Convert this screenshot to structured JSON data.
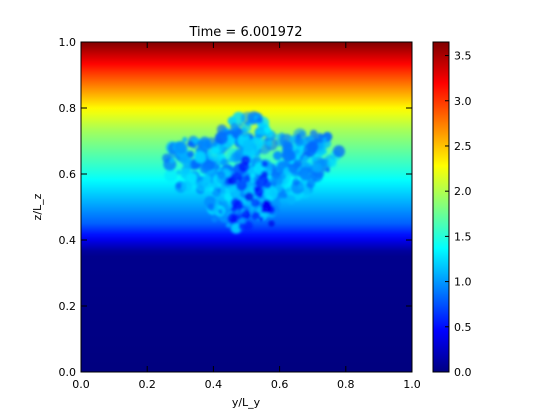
{
  "chart_data": {
    "type": "heatmap",
    "title": "Time = 6.001972",
    "xlabel": "y/L_y",
    "ylabel": "z/L_z",
    "xlim": [
      0.0,
      1.0
    ],
    "ylim": [
      0.0,
      1.0
    ],
    "x_ticks": [
      "0.0",
      "0.2",
      "0.4",
      "0.6",
      "0.8",
      "1.0"
    ],
    "y_ticks": [
      "0.0",
      "0.2",
      "0.4",
      "0.6",
      "0.8",
      "1.0"
    ],
    "colormap": "jet",
    "colorbar": {
      "range": [
        0.0,
        3.65
      ],
      "ticks": [
        "0.0",
        "0.5",
        "1.0",
        "1.5",
        "2.0",
        "2.5",
        "3.0",
        "3.5"
      ]
    },
    "field": {
      "description_levels": [
        {
          "z": 0.0,
          "value": 0.0
        },
        {
          "z": 0.36,
          "value": 0.05
        },
        {
          "z": 0.45,
          "value": 0.8
        },
        {
          "z": 0.6,
          "value": 1.45
        },
        {
          "z": 0.73,
          "value": 1.95
        },
        {
          "z": 0.8,
          "value": 2.3
        },
        {
          "z": 0.9,
          "value": 2.95
        },
        {
          "z": 1.0,
          "value": 3.65
        }
      ],
      "plume": {
        "center_y": 0.5,
        "bottom_z": 0.41,
        "top_z": 0.79,
        "value_range": [
          0.8,
          1.3
        ]
      }
    },
    "grid": false
  }
}
